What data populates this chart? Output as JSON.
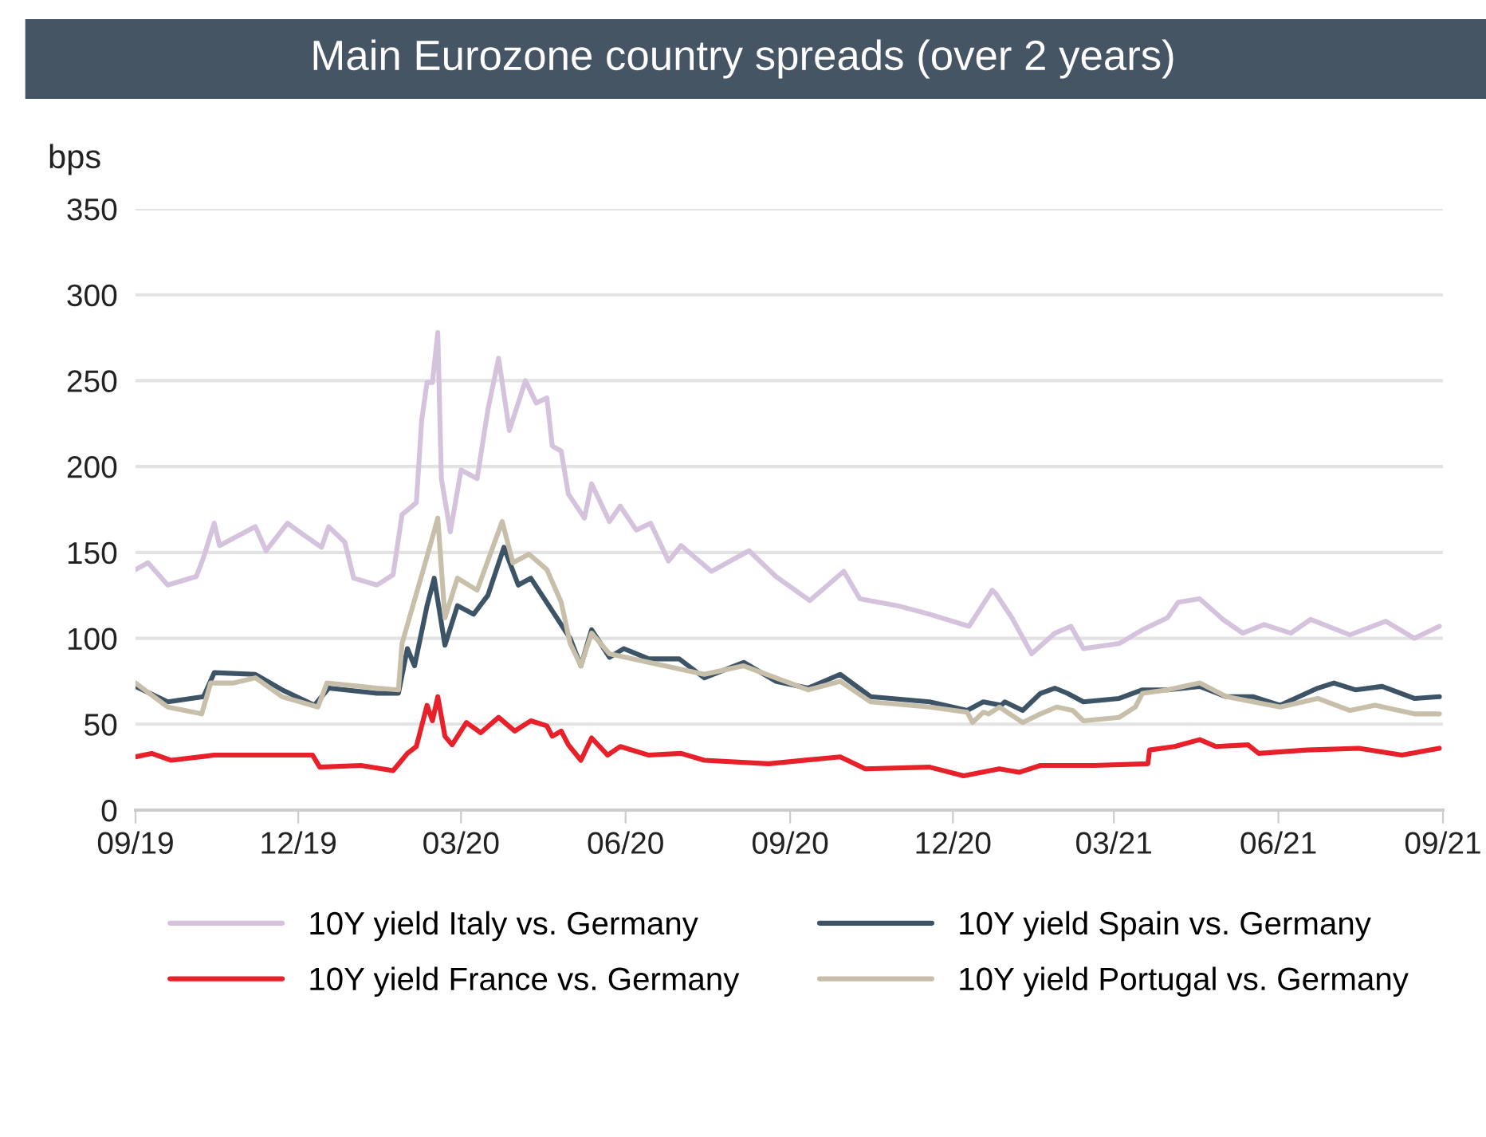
{
  "chart_data": {
    "type": "line",
    "title": "Main Eurozone country spreads (over 2 years)",
    "ylabel": "bps",
    "xlim": [
      "2019-09-01",
      "2021-09-01"
    ],
    "xticks": [
      {
        "value": "2019-09-01",
        "label": "09/19"
      },
      {
        "value": "2019-12-01",
        "label": "12/19"
      },
      {
        "value": "2020-03-01",
        "label": "03/20"
      },
      {
        "value": "2020-06-01",
        "label": "06/20"
      },
      {
        "value": "2020-09-01",
        "label": "09/20"
      },
      {
        "value": "2020-12-01",
        "label": "12/20"
      },
      {
        "value": "2021-03-01",
        "label": "03/21"
      },
      {
        "value": "2021-06-01",
        "label": "06/21"
      },
      {
        "value": "2021-09-01",
        "label": "09/21"
      }
    ],
    "ylim": [
      0,
      350
    ],
    "yticks": [
      0,
      50,
      100,
      150,
      200,
      250,
      300,
      350
    ],
    "grid": "y",
    "legend": "bottom",
    "series": [
      {
        "name": "10Y yield Italy vs. Germany",
        "color": "#d5c3dd",
        "x": [
          "2019-09-01",
          "2019-09-08",
          "2019-09-19",
          "2019-10-05",
          "2019-10-09",
          "2019-10-15",
          "2019-10-18",
          "2019-11-07",
          "2019-11-13",
          "2019-11-25",
          "2019-12-03",
          "2019-12-14",
          "2019-12-18",
          "2019-12-27",
          "2020-01-01",
          "2020-01-14",
          "2020-01-23",
          "2020-01-28",
          "2020-02-05",
          "2020-02-08",
          "2020-02-11",
          "2020-02-14",
          "2020-02-17",
          "2020-02-19",
          "2020-02-24",
          "2020-03-01",
          "2020-03-10",
          "2020-03-16",
          "2020-03-22",
          "2020-03-28",
          "2020-04-06",
          "2020-04-12",
          "2020-04-18",
          "2020-04-21",
          "2020-04-26",
          "2020-04-30",
          "2020-05-09",
          "2020-05-13",
          "2020-05-23",
          "2020-05-29",
          "2020-06-07",
          "2020-06-15",
          "2020-06-25",
          "2020-07-02",
          "2020-07-19",
          "2020-08-09",
          "2020-08-24",
          "2020-09-12",
          "2020-10-01",
          "2020-10-10",
          "2020-10-31",
          "2020-11-18",
          "2020-12-10",
          "2020-12-23",
          "2020-12-25",
          "2021-01-03",
          "2021-01-14",
          "2021-01-27",
          "2021-02-05",
          "2021-02-12",
          "2021-03-04",
          "2021-03-17",
          "2021-03-31",
          "2021-04-06",
          "2021-04-18",
          "2021-05-01",
          "2021-05-12",
          "2021-05-24",
          "2021-06-08",
          "2021-06-19",
          "2021-07-11",
          "2021-07-31",
          "2021-08-16",
          "2021-08-30"
        ],
        "values": [
          140,
          144,
          131,
          136,
          147,
          167,
          154,
          165,
          151,
          167,
          161,
          153,
          165,
          156,
          135,
          131,
          137,
          172,
          179,
          227,
          249,
          249,
          278,
          193,
          162,
          198,
          193,
          233,
          263,
          221,
          250,
          237,
          240,
          212,
          209,
          184,
          170,
          190,
          168,
          177,
          163,
          167,
          145,
          154,
          139,
          151,
          136,
          122,
          139,
          123,
          119,
          114,
          107,
          128,
          126,
          112,
          91,
          103,
          107,
          94,
          97,
          105,
          112,
          121,
          123,
          111,
          103,
          108,
          103,
          111,
          102,
          110,
          100,
          107
        ]
      },
      {
        "name": "10Y yield Spain vs. Germany",
        "color": "#3d5366",
        "x": [
          "2019-09-01",
          "2019-09-19",
          "2019-10-09",
          "2019-10-15",
          "2019-11-07",
          "2019-11-22",
          "2019-12-10",
          "2019-12-18",
          "2020-01-14",
          "2020-01-26",
          "2020-01-31",
          "2020-02-04",
          "2020-02-11",
          "2020-02-15",
          "2020-02-21",
          "2020-02-28",
          "2020-03-08",
          "2020-03-16",
          "2020-03-25",
          "2020-04-02",
          "2020-04-09",
          "2020-04-21",
          "2020-05-01",
          "2020-05-07",
          "2020-05-13",
          "2020-05-23",
          "2020-05-31",
          "2020-06-14",
          "2020-07-01",
          "2020-07-15",
          "2020-08-06",
          "2020-08-24",
          "2020-09-11",
          "2020-09-29",
          "2020-10-16",
          "2020-11-18",
          "2020-12-09",
          "2020-12-18",
          "2020-12-28",
          "2020-12-30",
          "2021-01-09",
          "2021-01-19",
          "2021-01-27",
          "2021-02-03",
          "2021-02-12",
          "2021-03-04",
          "2021-03-17",
          "2021-03-31",
          "2021-04-18",
          "2021-05-03",
          "2021-05-18",
          "2021-06-02",
          "2021-06-23",
          "2021-07-02",
          "2021-07-14",
          "2021-07-29",
          "2021-08-16",
          "2021-08-30"
        ],
        "values": [
          72,
          63,
          66,
          80,
          79,
          70,
          61,
          71,
          68,
          68,
          94,
          84,
          119,
          135,
          96,
          119,
          114,
          125,
          153,
          131,
          135,
          116,
          100,
          84,
          105,
          89,
          94,
          88,
          88,
          77,
          86,
          75,
          71,
          79,
          66,
          63,
          58,
          63,
          61,
          63,
          58,
          68,
          71,
          68,
          63,
          65,
          70,
          70,
          72,
          66,
          66,
          61,
          71,
          74,
          70,
          72,
          65,
          66
        ]
      },
      {
        "name": "10Y yield France vs. Germany",
        "color": "#e8202a",
        "x": [
          "2019-09-01",
          "2019-09-10",
          "2019-09-21",
          "2019-10-15",
          "2019-11-13",
          "2019-12-09",
          "2019-12-13",
          "2020-01-05",
          "2020-01-23",
          "2020-01-31",
          "2020-02-05",
          "2020-02-11",
          "2020-02-14",
          "2020-02-17",
          "2020-02-21",
          "2020-02-25",
          "2020-03-04",
          "2020-03-12",
          "2020-03-22",
          "2020-03-31",
          "2020-04-09",
          "2020-04-18",
          "2020-04-21",
          "2020-04-26",
          "2020-04-30",
          "2020-05-07",
          "2020-05-13",
          "2020-05-22",
          "2020-05-29",
          "2020-06-14",
          "2020-07-02",
          "2020-07-15",
          "2020-08-20",
          "2020-09-29",
          "2020-10-13",
          "2020-11-18",
          "2020-12-07",
          "2020-12-27",
          "2021-01-07",
          "2021-01-19",
          "2021-02-18",
          "2021-03-20",
          "2021-03-21",
          "2021-04-04",
          "2021-04-18",
          "2021-04-27",
          "2021-05-15",
          "2021-05-21",
          "2021-06-17",
          "2021-07-16",
          "2021-08-09",
          "2021-08-30"
        ],
        "values": [
          31,
          33,
          29,
          32,
          32,
          32,
          25,
          26,
          23,
          33,
          37,
          61,
          52,
          66,
          43,
          38,
          51,
          45,
          54,
          46,
          52,
          49,
          43,
          46,
          38,
          29,
          42,
          32,
          37,
          32,
          33,
          29,
          27,
          31,
          24,
          25,
          20,
          24,
          22,
          26,
          26,
          27,
          35,
          37,
          41,
          37,
          38,
          33,
          35,
          36,
          32,
          36
        ]
      },
      {
        "name": "10Y yield Portugal vs. Germany",
        "color": "#c8bfaa",
        "x": [
          "2019-09-01",
          "2019-09-19",
          "2019-10-08",
          "2019-10-13",
          "2019-10-26",
          "2019-11-07",
          "2019-11-22",
          "2019-12-12",
          "2019-12-17",
          "2020-01-14",
          "2020-01-26",
          "2020-01-28",
          "2020-02-10",
          "2020-02-17",
          "2020-02-21",
          "2020-02-28",
          "2020-03-10",
          "2020-03-24",
          "2020-03-30",
          "2020-04-08",
          "2020-04-18",
          "2020-04-26",
          "2020-05-01",
          "2020-05-07",
          "2020-05-13",
          "2020-05-23",
          "2020-06-14",
          "2020-07-15",
          "2020-08-06",
          "2020-08-24",
          "2020-09-11",
          "2020-09-29",
          "2020-10-16",
          "2020-11-18",
          "2020-12-09",
          "2020-12-12",
          "2020-12-18",
          "2020-12-21",
          "2020-12-27",
          "2021-01-09",
          "2021-01-19",
          "2021-01-28",
          "2021-02-06",
          "2021-02-12",
          "2021-03-04",
          "2021-03-13",
          "2021-03-17",
          "2021-03-31",
          "2021-04-18",
          "2021-05-03",
          "2021-06-02",
          "2021-06-23",
          "2021-07-11",
          "2021-07-25",
          "2021-08-16",
          "2021-08-30"
        ],
        "values": [
          74,
          60,
          56,
          74,
          74,
          77,
          66,
          60,
          74,
          71,
          70,
          97,
          144,
          170,
          112,
          135,
          128,
          168,
          144,
          149,
          140,
          121,
          97,
          84,
          103,
          91,
          86,
          79,
          84,
          77,
          70,
          75,
          63,
          60,
          57,
          51,
          57,
          56,
          60,
          51,
          56,
          60,
          58,
          52,
          54,
          60,
          68,
          70,
          74,
          66,
          60,
          65,
          58,
          61,
          56,
          56
        ]
      }
    ]
  }
}
